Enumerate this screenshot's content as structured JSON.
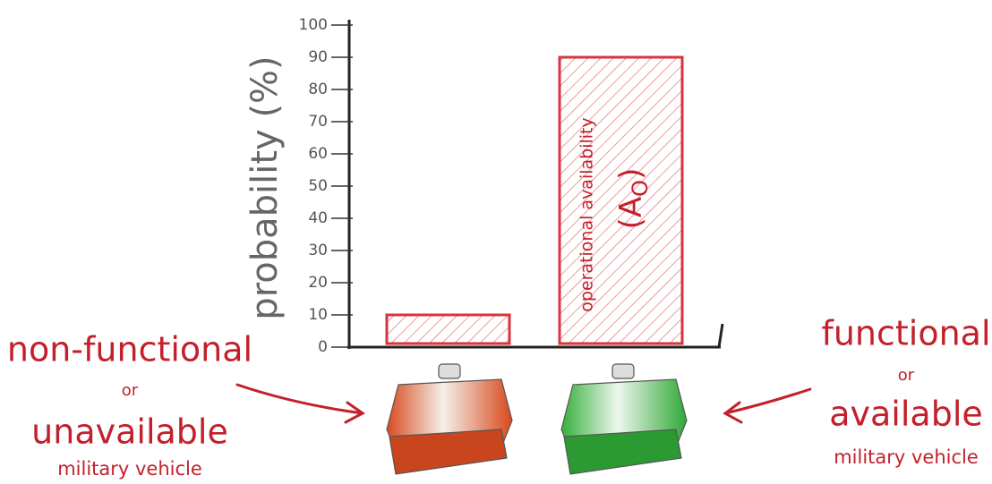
{
  "chart_data": {
    "type": "bar",
    "y_label": "probability (%)",
    "categories": [
      null,
      null
    ],
    "values": [
      10,
      90
    ],
    "color": "#d9333d",
    "ylim": [
      0,
      100
    ],
    "yticks": [
      0,
      10,
      20,
      30,
      40,
      50,
      60,
      70,
      80,
      90,
      100
    ],
    "grid": false,
    "bar_annotation": {
      "text": "operational availability",
      "symbol": "(A",
      "subscript": "O",
      "close": ")"
    },
    "left_label": [
      "non-functional",
      "or",
      "unavailable",
      "military vehicle"
    ],
    "right_label": [
      "functional",
      "or",
      "available",
      "military vehicle"
    ]
  }
}
